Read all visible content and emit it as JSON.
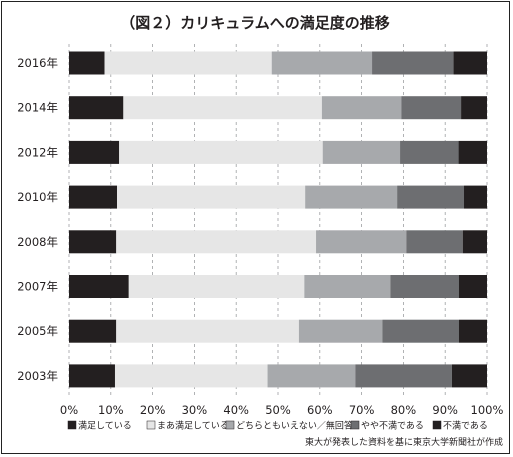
{
  "chart_data": {
    "type": "bar",
    "orientation": "horizontal",
    "stacked": true,
    "title": "（図２）カリキュラムへの満足度の推移",
    "categories": [
      "2016年",
      "2014年",
      "2012年",
      "2010年",
      "2008年",
      "2007年",
      "2005年",
      "2003年"
    ],
    "series": [
      {
        "name": "満足している",
        "color": "#231f20",
        "values": [
          8.5,
          13.0,
          12.0,
          11.5,
          11.3,
          14.3,
          11.3,
          11.0
        ]
      },
      {
        "name": "まあ満足している",
        "color": "#e6e6e6",
        "values": [
          40.0,
          47.5,
          48.7,
          45.0,
          47.8,
          42.0,
          43.7,
          36.5
        ]
      },
      {
        "name": "どちらともいえない／無回答",
        "color": "#a7a9ac",
        "values": [
          24.0,
          19.0,
          18.5,
          22.0,
          21.6,
          20.6,
          20.0,
          21.0
        ]
      },
      {
        "name": "やや不満である",
        "color": "#6d6e71",
        "values": [
          19.5,
          14.3,
          14.0,
          16.0,
          13.5,
          16.4,
          18.3,
          23.1
        ]
      },
      {
        "name": "不満である",
        "color": "#231f20",
        "values": [
          8.0,
          6.2,
          6.8,
          5.5,
          5.8,
          6.7,
          6.7,
          8.4
        ]
      }
    ],
    "xlim": [
      0,
      100
    ],
    "xticks": [
      "0%",
      "10%",
      "20%",
      "30%",
      "40%",
      "50%",
      "60%",
      "70%",
      "80%",
      "90%",
      "100%"
    ],
    "grid": "vertical dashed",
    "legend_position": "bottom",
    "source": "東大が発表した資料を基に東京大学新聞社が作成"
  }
}
